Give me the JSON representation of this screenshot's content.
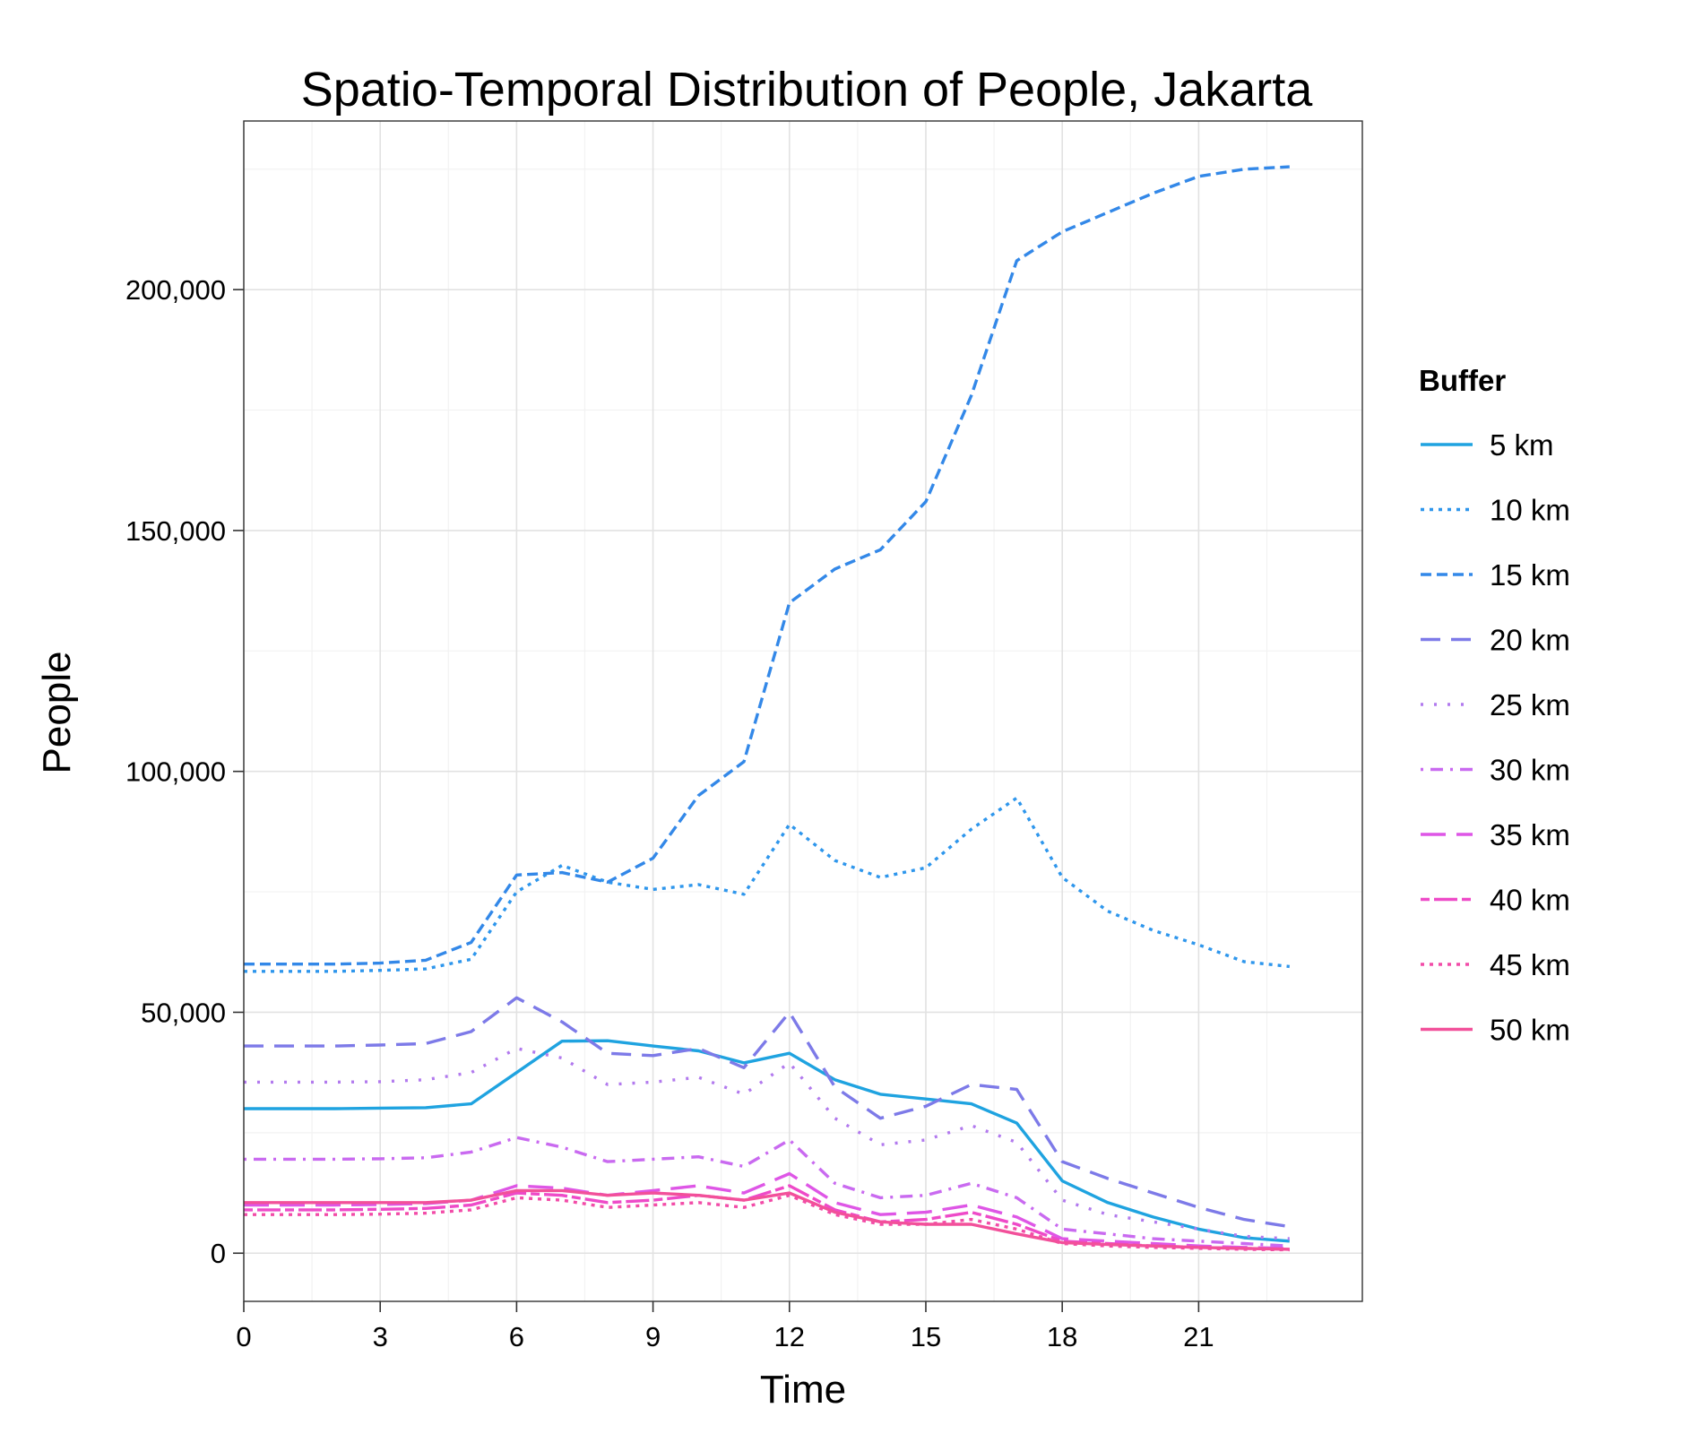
{
  "chart_data": {
    "type": "line",
    "title": "Spatio-Temporal Distribution of People, Jakarta",
    "xlabel": "Time",
    "ylabel": "People",
    "xlim": [
      0,
      24.6
    ],
    "ylim": [
      -10000,
      235000
    ],
    "x_ticks": [
      0,
      3,
      6,
      9,
      12,
      15,
      18,
      21
    ],
    "x_tick_labels": [
      "0",
      "3",
      "6",
      "9",
      "12",
      "15",
      "18",
      "21"
    ],
    "y_ticks": [
      0,
      50000,
      100000,
      150000,
      200000
    ],
    "y_tick_labels": [
      "0",
      "50,000",
      "100,000",
      "150,000",
      "200,000"
    ],
    "grid": true,
    "legend": {
      "title": "Buffer",
      "position": "right"
    },
    "x": [
      0,
      1,
      2,
      3,
      4,
      5,
      6,
      7,
      8,
      9,
      10,
      11,
      12,
      13,
      14,
      15,
      16,
      17,
      18,
      19,
      20,
      21,
      22,
      23
    ],
    "series": [
      {
        "name": "5 km",
        "color": "#1fa3e0",
        "dash": "solid",
        "values": [
          30000,
          30000,
          30000,
          30100,
          30200,
          31000,
          37500,
          44000,
          44100,
          43000,
          42000,
          39500,
          41500,
          36000,
          33000,
          32000,
          31000,
          27000,
          15000,
          10500,
          7500,
          5000,
          3200,
          2500
        ]
      },
      {
        "name": "10 km",
        "color": "#2e96ec",
        "dash": "dotted-dense",
        "values": [
          58500,
          58500,
          58500,
          58700,
          59000,
          61000,
          75000,
          80500,
          77000,
          75500,
          76500,
          74500,
          89000,
          81500,
          78000,
          80000,
          88000,
          94500,
          78000,
          71000,
          67000,
          64000,
          60500,
          59500
        ]
      },
      {
        "name": "15 km",
        "color": "#3388e8",
        "dash": "dashed",
        "values": [
          60000,
          60000,
          60000,
          60200,
          60800,
          64500,
          78500,
          79000,
          77000,
          82000,
          95000,
          102000,
          135000,
          142000,
          146000,
          156000,
          178000,
          206000,
          212000,
          216000,
          220000,
          223500,
          225000,
          225500
        ]
      },
      {
        "name": "20 km",
        "color": "#7d7ae8",
        "dash": "longdash",
        "values": [
          43000,
          43000,
          43000,
          43200,
          43500,
          46000,
          53000,
          48000,
          41500,
          41000,
          42500,
          38500,
          50000,
          34500,
          28000,
          30500,
          35000,
          34000,
          19000,
          15500,
          12500,
          9500,
          7000,
          5500
        ]
      },
      {
        "name": "25 km",
        "color": "#b27aee",
        "dash": "dotted",
        "values": [
          35500,
          35500,
          35500,
          35600,
          36000,
          37500,
          42500,
          40500,
          35000,
          35500,
          36500,
          33000,
          39500,
          28000,
          22500,
          23500,
          26500,
          23000,
          11000,
          8000,
          6500,
          5000,
          3500,
          3000
        ]
      },
      {
        "name": "30 km",
        "color": "#c96af0",
        "dash": "dotdash",
        "values": [
          19500,
          19500,
          19500,
          19600,
          19800,
          21000,
          24000,
          22000,
          19000,
          19500,
          20000,
          18000,
          23500,
          14500,
          11500,
          12000,
          14500,
          11500,
          5000,
          4000,
          3000,
          2500,
          2000,
          1500
        ]
      },
      {
        "name": "35 km",
        "color": "#de56e6",
        "dash": "longdash2",
        "values": [
          10000,
          10000,
          10000,
          10100,
          10300,
          11000,
          14000,
          13500,
          12000,
          13000,
          14000,
          12500,
          16500,
          10500,
          8000,
          8500,
          10000,
          7500,
          3000,
          2500,
          2000,
          1500,
          1200,
          1000
        ]
      },
      {
        "name": "40 km",
        "color": "#ee4ac8",
        "dash": "twodash",
        "values": [
          9000,
          9000,
          9000,
          9100,
          9300,
          10000,
          12500,
          12000,
          10500,
          11000,
          12000,
          11000,
          14000,
          9000,
          6500,
          7000,
          8500,
          6000,
          2500,
          2000,
          1500,
          1200,
          1000,
          800
        ]
      },
      {
        "name": "45 km",
        "color": "#f24ca8",
        "dash": "dotted-dense",
        "values": [
          8000,
          8000,
          8000,
          8100,
          8300,
          9000,
          11500,
          11000,
          9500,
          10000,
          10500,
          9500,
          12000,
          8000,
          6000,
          6000,
          7000,
          5000,
          2000,
          1500,
          1200,
          1000,
          800,
          700
        ]
      },
      {
        "name": "50 km",
        "color": "#f2509a",
        "dash": "solid",
        "values": [
          10500,
          10500,
          10500,
          10500,
          10500,
          11000,
          13000,
          13000,
          12000,
          12500,
          12000,
          11000,
          12500,
          8500,
          6500,
          6000,
          6000,
          4000,
          2200,
          1800,
          1500,
          1200,
          1000,
          800
        ]
      }
    ]
  }
}
